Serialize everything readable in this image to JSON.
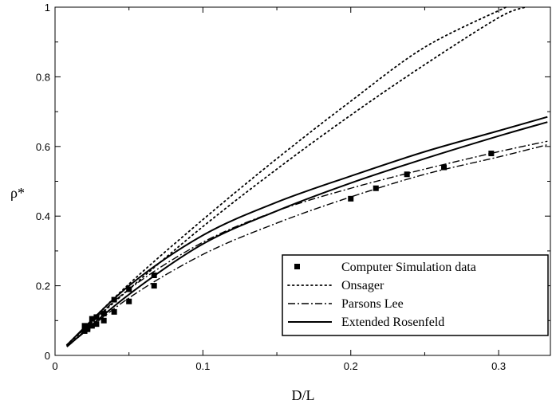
{
  "chart_data": {
    "type": "line",
    "xlabel": "D/L",
    "ylabel": "ρ*",
    "xlim": [
      0,
      0.335
    ],
    "ylim": [
      0,
      1
    ],
    "x_ticks": [
      0,
      0.1,
      0.2,
      0.3
    ],
    "x_tick_labels": [
      "0",
      "0.1",
      "0.2",
      "0.3"
    ],
    "y_ticks": [
      0,
      0.2,
      0.4,
      0.6,
      0.8,
      1
    ],
    "y_tick_labels": [
      "0",
      "0.2",
      "0.4",
      "0.6",
      "0.8",
      "1"
    ],
    "grid": false,
    "legend_position": "bottom-right",
    "series": [
      {
        "name": "Computer Simulation data",
        "style": "square-markers",
        "x": [
          0.02,
          0.02,
          0.022,
          0.022,
          0.025,
          0.025,
          0.028,
          0.028,
          0.033,
          0.033,
          0.04,
          0.04,
          0.05,
          0.05,
          0.067,
          0.067,
          0.2,
          0.217,
          0.238,
          0.263,
          0.295
        ],
        "y": [
          0.07,
          0.085,
          0.075,
          0.08,
          0.085,
          0.105,
          0.09,
          0.11,
          0.1,
          0.12,
          0.125,
          0.16,
          0.155,
          0.19,
          0.2,
          0.23,
          0.45,
          0.48,
          0.52,
          0.54,
          0.58
        ]
      },
      {
        "name": "Onsager",
        "style": "dotted",
        "curves": [
          {
            "x": [
              0.008,
              0.05,
              0.1,
              0.15,
              0.2,
              0.25,
              0.305
            ],
            "y": [
              0.03,
              0.205,
              0.39,
              0.565,
              0.73,
              0.885,
              1.0
            ]
          },
          {
            "x": [
              0.008,
              0.05,
              0.1,
              0.15,
              0.2,
              0.25,
              0.3,
              0.318
            ],
            "y": [
              0.03,
              0.19,
              0.37,
              0.535,
              0.69,
              0.835,
              0.97,
              1.0
            ]
          }
        ]
      },
      {
        "name": "Parsons Lee",
        "style": "dash-dot",
        "curves": [
          {
            "x": [
              0.008,
              0.05,
              0.1,
              0.15,
              0.2,
              0.25,
              0.3,
              0.333
            ],
            "y": [
              0.03,
              0.19,
              0.325,
              0.415,
              0.48,
              0.535,
              0.585,
              0.615
            ]
          },
          {
            "x": [
              0.008,
              0.05,
              0.1,
              0.15,
              0.2,
              0.25,
              0.3,
              0.333
            ],
            "y": [
              0.025,
              0.165,
              0.29,
              0.38,
              0.455,
              0.52,
              0.57,
              0.605
            ]
          }
        ]
      },
      {
        "name": "Extended Rosenfeld",
        "style": "solid",
        "curves": [
          {
            "x": [
              0.008,
              0.05,
              0.1,
              0.15,
              0.2,
              0.25,
              0.3,
              0.333
            ],
            "y": [
              0.03,
              0.2,
              0.345,
              0.44,
              0.515,
              0.585,
              0.645,
              0.685
            ]
          },
          {
            "x": [
              0.008,
              0.05,
              0.1,
              0.15,
              0.2,
              0.25,
              0.3,
              0.333
            ],
            "y": [
              0.025,
              0.175,
              0.32,
              0.415,
              0.495,
              0.565,
              0.63,
              0.67
            ]
          }
        ]
      }
    ]
  }
}
